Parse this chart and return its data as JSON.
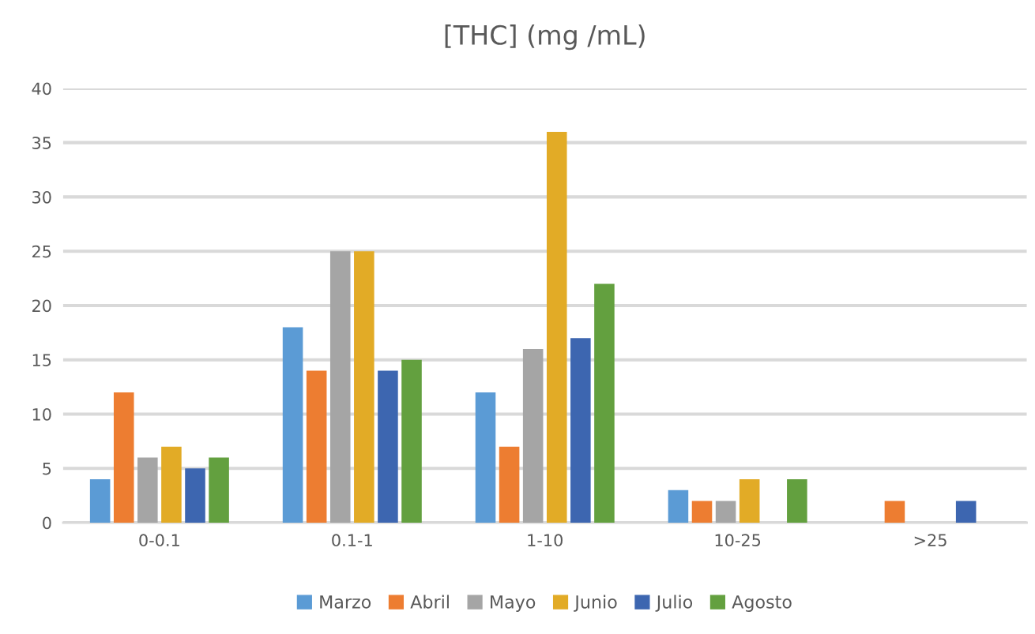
{
  "chart_data": {
    "type": "bar",
    "title": "[THC] (mg /mL)",
    "categories": [
      "0-0.1",
      "0.1-1",
      "1-10",
      "10-25",
      ">25"
    ],
    "series": [
      {
        "name": "Marzo",
        "color": "#5b9bd5",
        "values": [
          4,
          18,
          12,
          3,
          0
        ]
      },
      {
        "name": "Abril",
        "color": "#ed7d31",
        "values": [
          12,
          14,
          7,
          2,
          2
        ]
      },
      {
        "name": "Mayo",
        "color": "#a5a5a5",
        "values": [
          6,
          25,
          16,
          2,
          0
        ]
      },
      {
        "name": "Junio",
        "color": "#e2ab26",
        "values": [
          7,
          25,
          36,
          4,
          0
        ]
      },
      {
        "name": "Julio",
        "color": "#3d66b0",
        "values": [
          5,
          14,
          17,
          0,
          2
        ]
      },
      {
        "name": "Agosto",
        "color": "#63a03f",
        "values": [
          6,
          15,
          22,
          4,
          0
        ]
      }
    ],
    "ylim": [
      0,
      40
    ],
    "yticks": [
      0,
      5,
      10,
      15,
      20,
      25,
      30,
      35,
      40
    ],
    "grid": "y",
    "legend": "bottom"
  }
}
